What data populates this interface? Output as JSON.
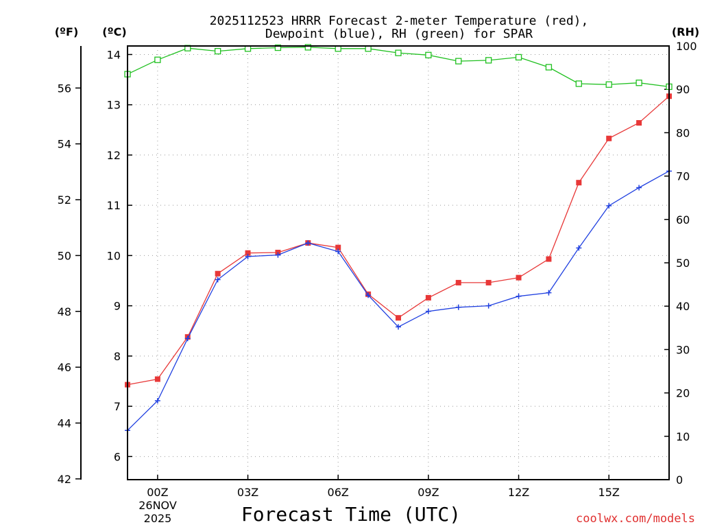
{
  "chart_data": {
    "type": "line",
    "title_line1": "2025112523 HRRR Forecast 2-meter Temperature (red),",
    "title_line2": "Dewpoint (blue), RH (green) for SPAR",
    "xlabel": "Forecast Time (UTC)",
    "credit": "coolwx.com/models",
    "left_unit_f": "(ºF)",
    "left_unit_c": "(ºC)",
    "right_unit": "(RH)",
    "x_hours": [
      -1,
      0,
      1,
      2,
      3,
      4,
      5,
      6,
      7,
      8,
      9,
      10,
      11,
      12,
      13,
      14,
      15,
      16,
      17
    ],
    "x_range": [
      -1,
      17
    ],
    "x_ticks": [
      {
        "hour": 0,
        "label": "00Z"
      },
      {
        "hour": 3,
        "label": "03Z"
      },
      {
        "hour": 6,
        "label": "06Z"
      },
      {
        "hour": 9,
        "label": "09Z"
      },
      {
        "hour": 12,
        "label": "12Z"
      },
      {
        "hour": 15,
        "label": "15Z"
      }
    ],
    "date_label_line1": "26NOV",
    "date_label_line2": "2025",
    "c_range": [
      5.54,
      14.17
    ],
    "c_ticks": [
      "6",
      "7",
      "8",
      "9",
      "10",
      "11",
      "12",
      "13",
      "14"
    ],
    "f_ticks": [
      "42",
      "44",
      "46",
      "48",
      "50",
      "52",
      "54",
      "56"
    ],
    "rh_range": [
      0,
      100
    ],
    "rh_ticks": [
      "0",
      "10",
      "20",
      "30",
      "40",
      "50",
      "60",
      "70",
      "80",
      "90",
      "100"
    ],
    "series": [
      {
        "name": "Temperature",
        "unit": "C",
        "color": "#e83838",
        "marker": "filled-square",
        "values": [
          7.43,
          7.54,
          8.38,
          9.64,
          10.05,
          10.06,
          10.25,
          10.16,
          9.23,
          8.76,
          9.16,
          9.46,
          9.46,
          9.56,
          9.93,
          11.45,
          12.33,
          12.64,
          13.17
        ]
      },
      {
        "name": "Dewpoint",
        "unit": "C",
        "color": "#2040e0",
        "marker": "plus",
        "values": [
          6.52,
          7.11,
          8.35,
          9.52,
          9.98,
          10.01,
          10.25,
          10.08,
          9.21,
          8.58,
          8.89,
          8.97,
          9.0,
          9.19,
          9.26,
          10.15,
          10.99,
          11.35,
          11.68
        ]
      },
      {
        "name": "RH",
        "unit": "%",
        "color": "#20c020",
        "marker": "open-square",
        "values": [
          93.5,
          96.8,
          99.5,
          98.8,
          99.4,
          99.6,
          99.7,
          99.4,
          99.4,
          98.4,
          97.9,
          96.5,
          96.7,
          97.4,
          95.1,
          91.3,
          91.1,
          91.5,
          90.6
        ]
      }
    ]
  }
}
